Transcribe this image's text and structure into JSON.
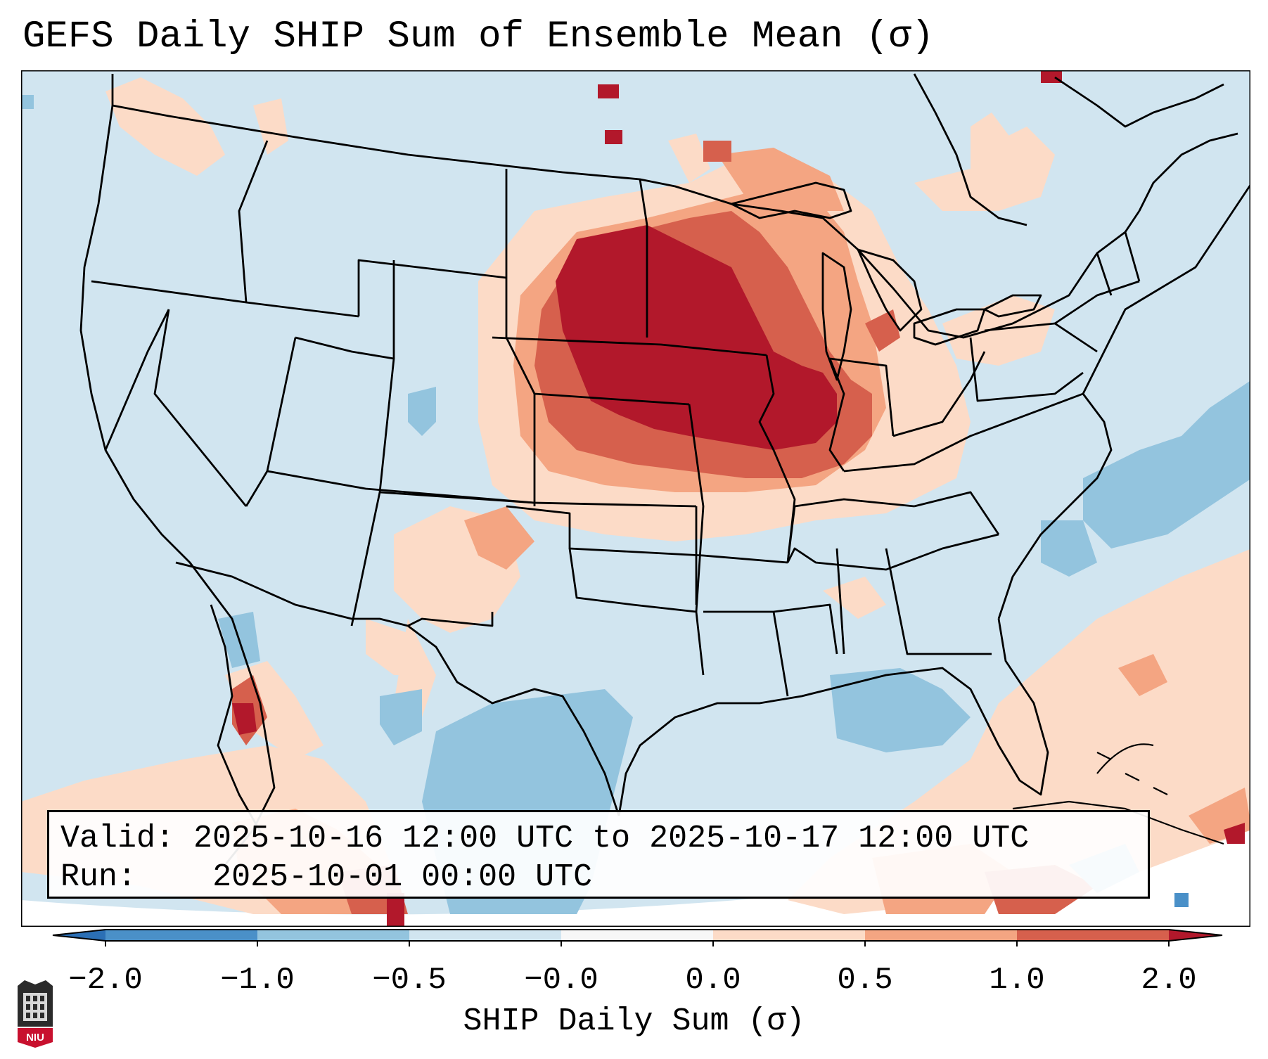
{
  "title": "GEFS Daily SHIP Sum of Ensemble Mean (σ)",
  "info": {
    "valid_label": "Valid:",
    "valid_value": "2025-10-16 12:00 UTC to 2025-10-17 12:00 UTC",
    "run_label": "Run:",
    "run_value": "2025-10-01 00:00 UTC"
  },
  "colorbar": {
    "label": "SHIP Daily Sum (σ)",
    "ticks": [
      "−2.0",
      "−1.0",
      "−0.5",
      "−0.0",
      "0.0",
      "0.5",
      "1.0",
      "2.0"
    ],
    "bins": [
      {
        "range": "< -2.0",
        "color": "#2b6fb5"
      },
      {
        "range": "-2.0 to -1.0",
        "color": "#4a90c8"
      },
      {
        "range": "-1.0 to -0.5",
        "color": "#93c4de"
      },
      {
        "range": "-0.5 to -0.0",
        "color": "#d1e5f0"
      },
      {
        "range": "-0.0 to 0.0",
        "color": "#f7f7f7"
      },
      {
        "range": "0.0 to 0.5",
        "color": "#fcdbc7"
      },
      {
        "range": "0.5 to 1.0",
        "color": "#f4a582"
      },
      {
        "range": "1.0 to 2.0",
        "color": "#d6604d"
      },
      {
        "range": "> 2.0",
        "color": "#b2182b"
      }
    ]
  },
  "logo": {
    "text": "NIU",
    "name": "niu-logo"
  },
  "colors": {
    "background_field": "#d1e5f0",
    "strong_positive": "#b2182b",
    "positive": "#d6604d",
    "weak_positive": "#f4a582",
    "slight_positive": "#fcdbc7",
    "negative": "#93c4de",
    "strong_negative": "#4a90c8"
  },
  "map": {
    "region": "Contiguous United States with southern Canada, northern Mexico, Gulf of Mexico and Caribbean",
    "projection": "Lambert conformal",
    "features": [
      "state borders",
      "coastlines",
      "national borders"
    ]
  }
}
